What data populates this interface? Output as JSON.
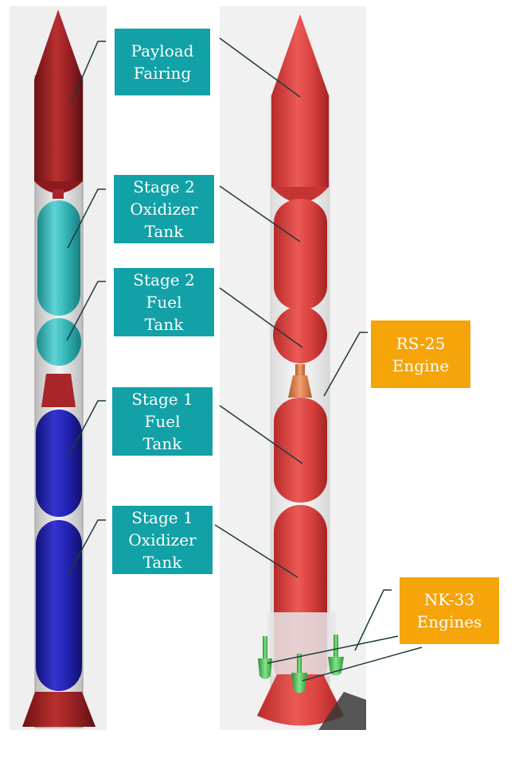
{
  "labels": {
    "payload_fairing": [
      "Payload",
      "Fairing"
    ],
    "stage2_oxidizer": [
      "Stage 2",
      "Oxidizer",
      "Tank"
    ],
    "stage2_fuel": [
      "Stage 2",
      "Fuel",
      "Tank"
    ],
    "stage1_fuel": [
      "Stage 1",
      "Fuel",
      "Tank"
    ],
    "stage1_oxidizer": [
      "Stage 1",
      "Oxidizer",
      "Tank"
    ],
    "rs25": [
      "RS-25",
      "Engine"
    ],
    "nk33": [
      "NK-33",
      "Engines"
    ]
  },
  "colors": {
    "teal_label": "#12a1a6",
    "orange_label": "#f5a40a",
    "fairing_red": "#a8252a",
    "stage2_tank_cyan": "#2fb5b5",
    "stage1_tank_blue": "#1f1fa8",
    "right_tank_red": "#d83a38",
    "engine_copper": "#d97a45",
    "nk33_green": "#3fc24a"
  }
}
